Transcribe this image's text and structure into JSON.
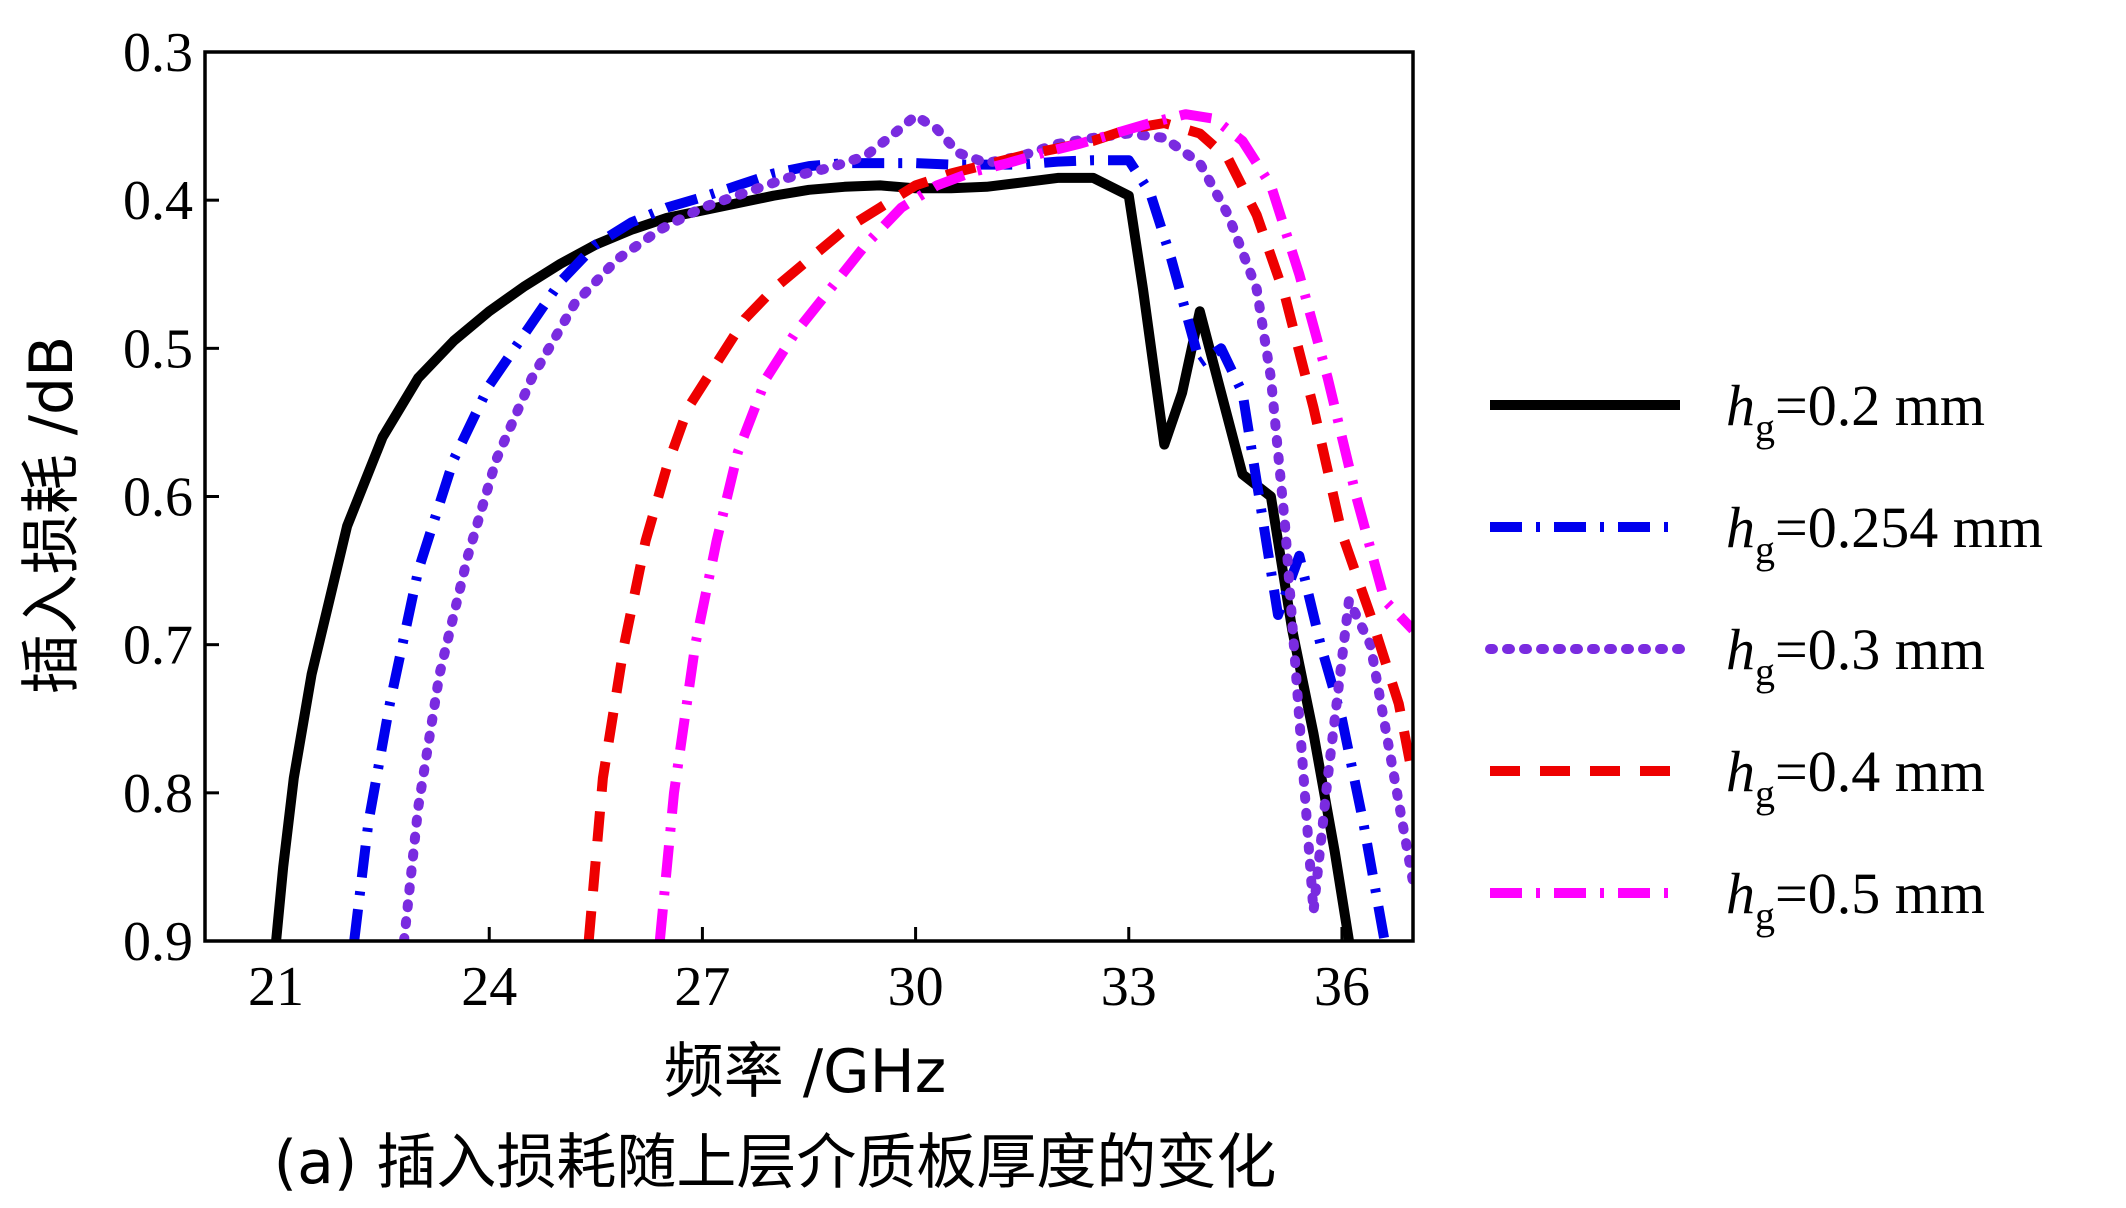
{
  "chart_data": {
    "type": "line",
    "caption": "(a) 插入损耗随上层介质板厚度的变化",
    "xlabel": "频率 /GHz",
    "ylabel": "插入损耗 /dB",
    "xlim": [
      20,
      37
    ],
    "ylim": [
      0.3,
      0.9
    ],
    "y_inverted": true,
    "xticks": [
      21,
      24,
      27,
      30,
      33,
      36
    ],
    "xtick_labels": [
      "21",
      "24",
      "27",
      "30",
      "33",
      "36"
    ],
    "yticks": [
      0.3,
      0.4,
      0.5,
      0.6,
      0.7,
      0.8,
      0.9
    ],
    "ytick_labels": [
      "0.3",
      "0.4",
      "0.5",
      "0.6",
      "0.7",
      "0.8",
      "0.9"
    ],
    "grid": false,
    "legend_position": "right",
    "series": [
      {
        "name": "hg=0.2 mm",
        "legend_main": "h",
        "legend_sub": "g",
        "legend_rest": "=0.2 mm",
        "color": "#000000",
        "style": "solid",
        "x": [
          21.0,
          21.1,
          21.25,
          21.5,
          21.75,
          22.0,
          22.5,
          23.0,
          23.5,
          24.0,
          24.5,
          25.0,
          25.5,
          26.0,
          26.5,
          27.0,
          27.5,
          28.0,
          28.5,
          29.0,
          29.5,
          30.0,
          30.5,
          31.0,
          31.5,
          32.0,
          32.5,
          33.0,
          33.2,
          33.5,
          33.75,
          34.0,
          34.3,
          34.6,
          35.0,
          35.3,
          35.6,
          35.9,
          36.1
        ],
        "y": [
          0.9,
          0.85,
          0.79,
          0.72,
          0.67,
          0.62,
          0.56,
          0.52,
          0.495,
          0.475,
          0.458,
          0.443,
          0.43,
          0.42,
          0.412,
          0.407,
          0.402,
          0.397,
          0.393,
          0.391,
          0.39,
          0.392,
          0.392,
          0.391,
          0.388,
          0.385,
          0.385,
          0.397,
          0.46,
          0.565,
          0.53,
          0.475,
          0.53,
          0.585,
          0.6,
          0.69,
          0.76,
          0.84,
          0.9
        ]
      },
      {
        "name": "hg=0.254 mm",
        "legend_main": "h",
        "legend_sub": "g",
        "legend_rest": "=0.254 mm",
        "color": "#0000ee",
        "style": "dashdot",
        "x": [
          22.1,
          22.3,
          22.6,
          23.0,
          23.5,
          24.0,
          24.5,
          25.0,
          25.5,
          26.0,
          26.5,
          27.0,
          27.5,
          28.0,
          28.5,
          29.0,
          29.5,
          30.0,
          30.5,
          31.0,
          31.5,
          32.0,
          32.5,
          33.0,
          33.3,
          33.6,
          34.0,
          34.3,
          34.6,
          34.9,
          35.1,
          35.4,
          35.7,
          36.0,
          36.3,
          36.6
        ],
        "y": [
          0.9,
          0.82,
          0.74,
          0.65,
          0.575,
          0.525,
          0.49,
          0.455,
          0.43,
          0.415,
          0.405,
          0.398,
          0.39,
          0.382,
          0.377,
          0.375,
          0.375,
          0.375,
          0.376,
          0.376,
          0.376,
          0.374,
          0.373,
          0.373,
          0.395,
          0.44,
          0.51,
          0.5,
          0.53,
          0.62,
          0.68,
          0.64,
          0.7,
          0.75,
          0.82,
          0.9
        ]
      },
      {
        "name": "hg=0.3 mm",
        "legend_main": "h",
        "legend_sub": "g",
        "legend_rest": "=0.3 mm",
        "color": "#7a2be0",
        "style": "dotted",
        "x": [
          22.8,
          23.0,
          23.3,
          23.7,
          24.1,
          24.6,
          25.2,
          25.8,
          26.4,
          27.0,
          27.6,
          28.2,
          28.8,
          29.3,
          29.7,
          30.0,
          30.3,
          30.6,
          31.0,
          31.5,
          32.0,
          32.5,
          33.0,
          33.5,
          34.0,
          34.4,
          34.8,
          35.0,
          35.2,
          35.4,
          35.6,
          35.8,
          36.1,
          36.4,
          36.7,
          37.0
        ],
        "y": [
          0.9,
          0.81,
          0.72,
          0.64,
          0.575,
          0.52,
          0.47,
          0.44,
          0.42,
          0.405,
          0.395,
          0.385,
          0.378,
          0.37,
          0.355,
          0.343,
          0.352,
          0.368,
          0.375,
          0.37,
          0.362,
          0.358,
          0.355,
          0.358,
          0.375,
          0.41,
          0.46,
          0.52,
          0.62,
          0.75,
          0.88,
          0.79,
          0.67,
          0.7,
          0.78,
          0.86
        ]
      },
      {
        "name": "hg=0.4 mm",
        "legend_main": "h",
        "legend_sub": "g",
        "legend_rest": "=0.4 mm",
        "color": "#ee0000",
        "style": "dashed",
        "x": [
          25.4,
          25.6,
          25.9,
          26.2,
          26.5,
          26.8,
          27.2,
          27.6,
          28.0,
          28.5,
          29.0,
          29.5,
          30.0,
          30.5,
          31.0,
          31.5,
          32.0,
          32.5,
          33.0,
          33.5,
          34.0,
          34.4,
          34.8,
          35.2,
          35.6,
          36.0,
          36.4,
          36.8,
          37.0
        ],
        "y": [
          0.9,
          0.79,
          0.7,
          0.63,
          0.58,
          0.54,
          0.51,
          0.48,
          0.46,
          0.44,
          0.42,
          0.405,
          0.39,
          0.382,
          0.376,
          0.37,
          0.365,
          0.36,
          0.352,
          0.348,
          0.355,
          0.372,
          0.41,
          0.465,
          0.54,
          0.625,
          0.68,
          0.74,
          0.79
        ]
      },
      {
        "name": "hg=0.5 mm",
        "legend_main": "h",
        "legend_sub": "g",
        "legend_rest": "=0.5 mm",
        "color": "#ff00ff",
        "style": "dashdot",
        "x": [
          26.4,
          26.6,
          26.9,
          27.2,
          27.5,
          27.9,
          28.3,
          28.8,
          29.3,
          29.8,
          30.3,
          30.8,
          31.3,
          31.8,
          32.3,
          32.8,
          33.3,
          33.8,
          34.2,
          34.6,
          35.0,
          35.4,
          35.8,
          36.2,
          36.6,
          37.0
        ],
        "y": [
          0.9,
          0.8,
          0.7,
          0.63,
          0.57,
          0.52,
          0.49,
          0.46,
          0.43,
          0.405,
          0.39,
          0.381,
          0.375,
          0.368,
          0.362,
          0.355,
          0.348,
          0.342,
          0.345,
          0.36,
          0.39,
          0.45,
          0.52,
          0.6,
          0.67,
          0.69
        ]
      }
    ]
  }
}
